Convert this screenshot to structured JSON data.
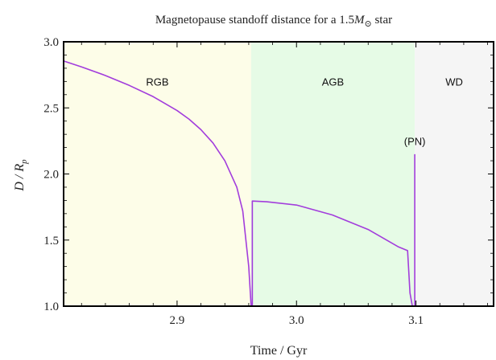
{
  "chart_data": {
    "type": "line",
    "title": {
      "prefix": "Magnetopause standoff distance for a 1.5",
      "symbol": "M",
      "subscript": "⊙",
      "suffix": " star"
    },
    "xlabel": "Time / Gyr",
    "ylabel": {
      "prefix": "D / R",
      "subscript": "p"
    },
    "xlim": [
      2.805,
      3.165
    ],
    "ylim": [
      1.0,
      3.0
    ],
    "x_ticks": [
      {
        "value": 2.9,
        "label": "2.9"
      },
      {
        "value": 3.0,
        "label": "3.0"
      },
      {
        "value": 3.1,
        "label": "3.1"
      }
    ],
    "y_ticks": [
      {
        "value": 1.0,
        "label": "1.0"
      },
      {
        "value": 1.5,
        "label": "1.5"
      },
      {
        "value": 2.0,
        "label": "2.0"
      },
      {
        "value": 2.5,
        "label": "2.5"
      },
      {
        "value": 3.0,
        "label": "3.0"
      }
    ],
    "regions": [
      {
        "label": "RGB",
        "x_start": 2.805,
        "x_end": 2.962,
        "color": "#fdfde8",
        "label_y": 2.7
      },
      {
        "label": "AGB",
        "x_start": 2.962,
        "x_end": 3.099,
        "color": "#e6fbe6",
        "label_y": 2.7
      },
      {
        "label": "WD",
        "x_start": 3.099,
        "x_end": 3.165,
        "color": "#f5f5f5",
        "label_y": 2.7
      }
    ],
    "annotations": [
      {
        "text": "(PN)",
        "x": 3.099,
        "y": 2.22
      }
    ],
    "series": [
      {
        "color": "#a23ddc",
        "segments": [
          [
            [
              2.805,
              2.855
            ],
            [
              2.82,
              2.81
            ],
            [
              2.84,
              2.745
            ],
            [
              2.86,
              2.67
            ],
            [
              2.88,
              2.585
            ],
            [
              2.9,
              2.48
            ],
            [
              2.91,
              2.415
            ],
            [
              2.92,
              2.335
            ],
            [
              2.93,
              2.235
            ],
            [
              2.94,
              2.1
            ],
            [
              2.95,
              1.9
            ],
            [
              2.955,
              1.72
            ],
            [
              2.96,
              1.3
            ],
            [
              2.962,
              1.0
            ]
          ],
          [
            [
              2.963,
              1.0
            ],
            [
              2.963,
              1.795
            ],
            [
              2.975,
              1.79
            ],
            [
              3.0,
              1.765
            ],
            [
              3.03,
              1.69
            ],
            [
              3.06,
              1.58
            ],
            [
              3.085,
              1.45
            ],
            [
              3.093,
              1.42
            ],
            [
              3.095,
              1.1
            ],
            [
              3.097,
              1.0
            ],
            [
              3.099,
              1.0
            ],
            [
              3.099,
              2.15
            ]
          ]
        ]
      }
    ],
    "grid": false
  }
}
